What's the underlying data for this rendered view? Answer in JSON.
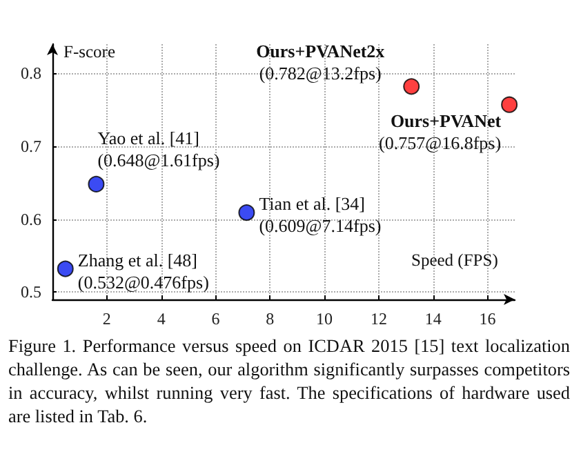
{
  "chart_data": {
    "type": "scatter",
    "xlabel": "Speed (FPS)",
    "ylabel": "F-score",
    "x": [
      0.476,
      1.61,
      7.14,
      13.2,
      16.8
    ],
    "values": [
      0.532,
      0.648,
      0.609,
      0.782,
      0.757
    ],
    "colors": [
      "#0a1ef0",
      "#0a1ef0",
      "#0a1ef0",
      "#ff1010",
      "#ff1010"
    ],
    "xlim": [
      0,
      17
    ],
    "xticks": [
      2,
      4,
      6,
      8,
      10,
      12,
      14,
      16
    ],
    "ylim": [
      0.49,
      0.84
    ],
    "yticks": [
      0.5,
      0.6,
      0.7,
      0.8
    ],
    "grid": true,
    "marker": "circle",
    "annotations": [
      {
        "text": "Zhang et al. [48]\n(0.532@0.476fps)",
        "x": 0.476,
        "y": 0.532
      },
      {
        "text": "Yao et al. [41]\n(0.648@1.61fps)",
        "x": 1.61,
        "y": 0.648
      },
      {
        "text": "Tian et al. [34]\n(0.609@7.14fps)",
        "x": 7.14,
        "y": 0.609
      },
      {
        "text": "Ours+PVANet2x\n(0.782@13.2fps)",
        "x": 13.2,
        "y": 0.782
      },
      {
        "text": "Ours+PVANet\n(0.757@16.8fps)",
        "x": 16.8,
        "y": 0.757
      },
      "Figure 1. Performance versus speed on ICDAR 2015 [15] text localization challenge. As can be seen, our algorithm significantly surpasses competitors in accuracy, whilst running very fast. The specifications of hardware used are listed in Tab. 6."
    ]
  }
}
